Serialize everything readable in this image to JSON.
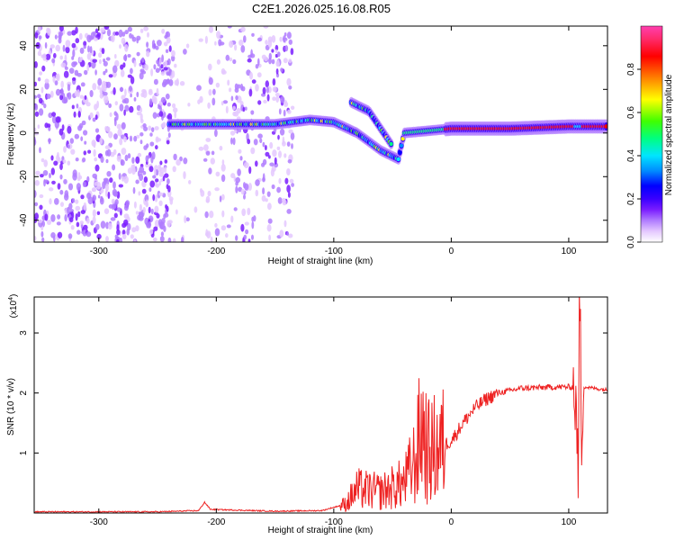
{
  "title": "C2E1.2026.025.16.08.R05",
  "chart_data": [
    {
      "type": "heatmap",
      "xlabel": "Height of straight line (km)",
      "ylabel": "Frequency (Hz)",
      "xlim": [
        -355,
        133
      ],
      "ylim": [
        -50,
        49
      ],
      "xticks": [
        -300,
        -200,
        -100,
        0,
        100
      ],
      "yticks": [
        -40,
        -20,
        0,
        20,
        40
      ],
      "colorbar": {
        "label": "Normalized spectral amplitude",
        "range": [
          0,
          1
        ],
        "ticks": [
          0.0,
          0.2,
          0.4,
          0.6,
          0.8
        ],
        "colormap": [
          "#ffffff",
          "#e4c8ff",
          "#b07cff",
          "#7a1dff",
          "#3a00ff",
          "#0000ff",
          "#008cff",
          "#00e5ff",
          "#00ff80",
          "#40ff00",
          "#ffff00",
          "#ff8000",
          "#ff0000",
          "#ff2a6a",
          "#ff3fb0"
        ]
      },
      "ridge": [
        {
          "x": -240,
          "y": 4
        },
        {
          "x": -200,
          "y": 4
        },
        {
          "x": -150,
          "y": 4
        },
        {
          "x": -120,
          "y": 6
        },
        {
          "x": -100,
          "y": 5
        },
        {
          "x": -80,
          "y": 0
        },
        {
          "x": -60,
          "y": -8
        },
        {
          "x": -45,
          "y": -12
        },
        {
          "x": -40,
          "y": 0
        },
        {
          "x": -20,
          "y": 1
        },
        {
          "x": 0,
          "y": 2
        },
        {
          "x": 50,
          "y": 2
        },
        {
          "x": 100,
          "y": 3
        },
        {
          "x": 133,
          "y": 3
        }
      ],
      "branch": [
        {
          "x": -85,
          "y": 14
        },
        {
          "x": -70,
          "y": 10
        },
        {
          "x": -60,
          "y": 2
        },
        {
          "x": -50,
          "y": -6
        }
      ]
    },
    {
      "type": "line",
      "xlabel": "Height of straight line (km)",
      "ylabel": "SNR (10 * v/v)",
      "y_multiplier": "(x10",
      "y_multiplier_exp": "4",
      "xlim": [
        -355,
        133
      ],
      "ylim": [
        0,
        3.6
      ],
      "xticks": [
        -300,
        -200,
        -100,
        0,
        100
      ],
      "yticks": [
        1,
        2,
        3
      ],
      "series": [
        {
          "color": "#ee2222",
          "points": [
            {
              "x": -355,
              "y": 0.02
            },
            {
              "x": -250,
              "y": 0.02
            },
            {
              "x": -215,
              "y": 0.04
            },
            {
              "x": -210,
              "y": 0.18
            },
            {
              "x": -205,
              "y": 0.06
            },
            {
              "x": -150,
              "y": 0.03
            },
            {
              "x": -110,
              "y": 0.04
            },
            {
              "x": -90,
              "y": 0.15
            },
            {
              "x": -80,
              "y": 0.4
            },
            {
              "x": -60,
              "y": 0.35
            },
            {
              "x": -40,
              "y": 0.5
            },
            {
              "x": -30,
              "y": 0.9
            },
            {
              "x": -25,
              "y": 1.5
            },
            {
              "x": -20,
              "y": 1.0
            },
            {
              "x": -10,
              "y": 1.1
            },
            {
              "x": 0,
              "y": 1.2
            },
            {
              "x": 10,
              "y": 1.5
            },
            {
              "x": 20,
              "y": 1.75
            },
            {
              "x": 30,
              "y": 1.9
            },
            {
              "x": 40,
              "y": 2.0
            },
            {
              "x": 60,
              "y": 2.08
            },
            {
              "x": 90,
              "y": 2.1
            },
            {
              "x": 104,
              "y": 2.1
            },
            {
              "x": 107,
              "y": 1.5
            },
            {
              "x": 108,
              "y": 0.2
            },
            {
              "x": 109,
              "y": 3.4
            },
            {
              "x": 110,
              "y": 2.9
            },
            {
              "x": 111,
              "y": 1.2
            },
            {
              "x": 113,
              "y": 2.1
            },
            {
              "x": 133,
              "y": 2.05
            }
          ]
        }
      ]
    }
  ]
}
